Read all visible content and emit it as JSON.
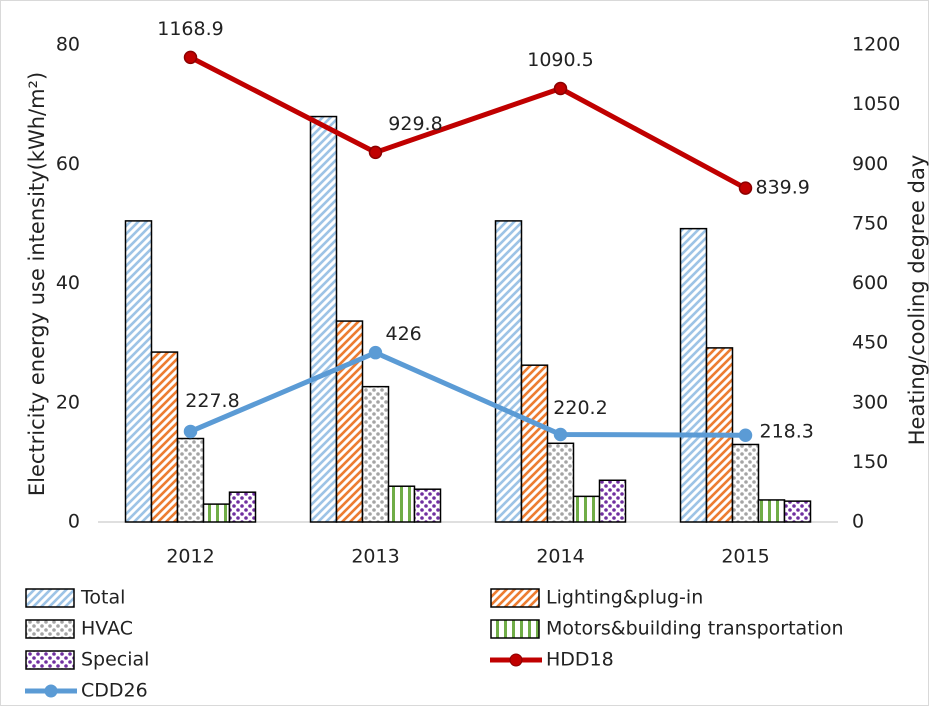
{
  "chart_data": {
    "type": "bar",
    "categories": [
      "2012",
      "2013",
      "2014",
      "2015"
    ],
    "y_label": "Electricity energy use intensity(kWh/m²)",
    "y2_label": "Heating/cooling degree day",
    "ylim": [
      0,
      80
    ],
    "yticks": [
      0,
      20,
      40,
      60,
      80
    ],
    "y2lim": [
      0,
      1200
    ],
    "y2ticks": [
      0,
      150,
      300,
      450,
      600,
      750,
      900,
      1050,
      1200
    ],
    "series": [
      {
        "name": "Total",
        "color": "#9dc3e6",
        "pattern": "diagonal",
        "values": [
          50.5,
          68,
          50.5,
          49.2
        ]
      },
      {
        "name": "Lighting&plug-in",
        "color": "#ed7d31",
        "pattern": "diagonal",
        "values": [
          28.5,
          33.7,
          26.3,
          29.2
        ]
      },
      {
        "name": "HVAC",
        "color": "#a5a5a5",
        "pattern": "dots",
        "values": [
          14,
          22.7,
          13.2,
          13
        ]
      },
      {
        "name": "Motors&building transportation",
        "color": "#70ad47",
        "pattern": "vertical",
        "values": [
          3,
          6,
          4.3,
          3.7
        ]
      },
      {
        "name": "Special",
        "color": "#7030a0",
        "pattern": "dots",
        "values": [
          5,
          5.5,
          7,
          3.5
        ]
      },
      {
        "name": "HDD18",
        "type": "line",
        "axis": "y2",
        "color": "#c00000",
        "values": [
          1168.9,
          929.8,
          1090.5,
          839.9
        ]
      },
      {
        "name": "CDD26",
        "type": "line",
        "axis": "y2",
        "color": "#5b9bd5",
        "values": [
          227.8,
          426,
          220.2,
          218.3
        ]
      }
    ]
  }
}
